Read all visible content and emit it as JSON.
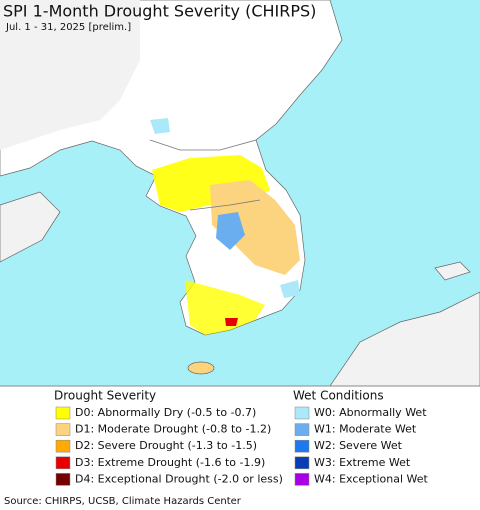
{
  "header": {
    "title": "SPI 1-Month Drought Severity (CHIRPS)",
    "subtitle": "Jul. 1 - 31, 2025 [prelim.]"
  },
  "legend": {
    "drought": {
      "title": "Drought Severity",
      "items": [
        {
          "label": "D0: Abnormally Dry (-0.5 to -0.7)",
          "color": "#ffff00"
        },
        {
          "label": "D1: Moderate Drought (-0.8 to -1.2)",
          "color": "#fcd37f"
        },
        {
          "label": "D2: Severe Drought (-1.3 to -1.5)",
          "color": "#ffaa00"
        },
        {
          "label": "D3: Extreme Drought (-1.6 to -1.9)",
          "color": "#e60000"
        },
        {
          "label": "D4: Exceptional Drought (-2.0 or less)",
          "color": "#730000"
        }
      ]
    },
    "wet": {
      "title": "Wet Conditions",
      "items": [
        {
          "label": "W0: Abnormally Wet",
          "color": "#aae8fa"
        },
        {
          "label": "W1: Moderate Wet",
          "color": "#6aaef0"
        },
        {
          "label": "W2: Severe Wet",
          "color": "#1e78f0"
        },
        {
          "label": "W3: Extreme Wet",
          "color": "#0a3cb4"
        },
        {
          "label": "W4: Exceptional Wet",
          "color": "#a800e6"
        }
      ]
    }
  },
  "footer": {
    "source": "Source: CHIRPS, UCSB, Climate Hazards Center"
  }
}
